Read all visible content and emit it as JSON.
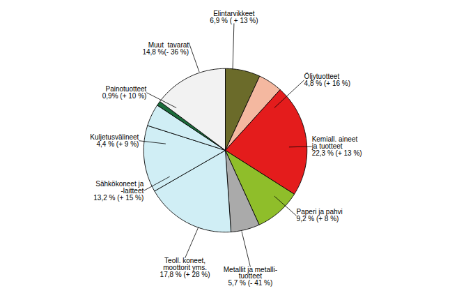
{
  "chart_data": {
    "type": "pie",
    "categories": [
      "Elintarvikkeet\n6,9 % ( + 13 %)",
      "Öljytuotteet\n4,8 % (+ 16 %)",
      "Kemiall. aineet\nja tuotteet\n22,3 % (+ 13 %)",
      "Paperi ja pahvi\n9,2 % (+ 8 %)",
      "Metallit ja metalli-\ntuotteet\n5,7 % (- 41 %)",
      "Teoll. koneet,\nmoottorit yms.\n17,8 % (+ 28 %)",
      "Sähkökoneet ja\n-laitteet\n13,2 % (+ 15 %)",
      "Kuljetusvälineet\n4,4 % (+ 9 %)",
      "Painotuotteet\n0,9% (+ 10 %)",
      "Muut  tavarat\n14,8 %(- 36 %)"
    ],
    "values": [
      6.9,
      4.8,
      22.3,
      9.2,
      5.7,
      17.8,
      13.2,
      4.4,
      0.9,
      14.8
    ],
    "colors": [
      "#6b6b2a",
      "#f4b8a0",
      "#e41c1c",
      "#8fbe2a",
      "#aaaaaa",
      "#d0eef5",
      "#d0eef5",
      "#d0eef5",
      "#1a6b3a",
      "#f2f2f2"
    ]
  }
}
